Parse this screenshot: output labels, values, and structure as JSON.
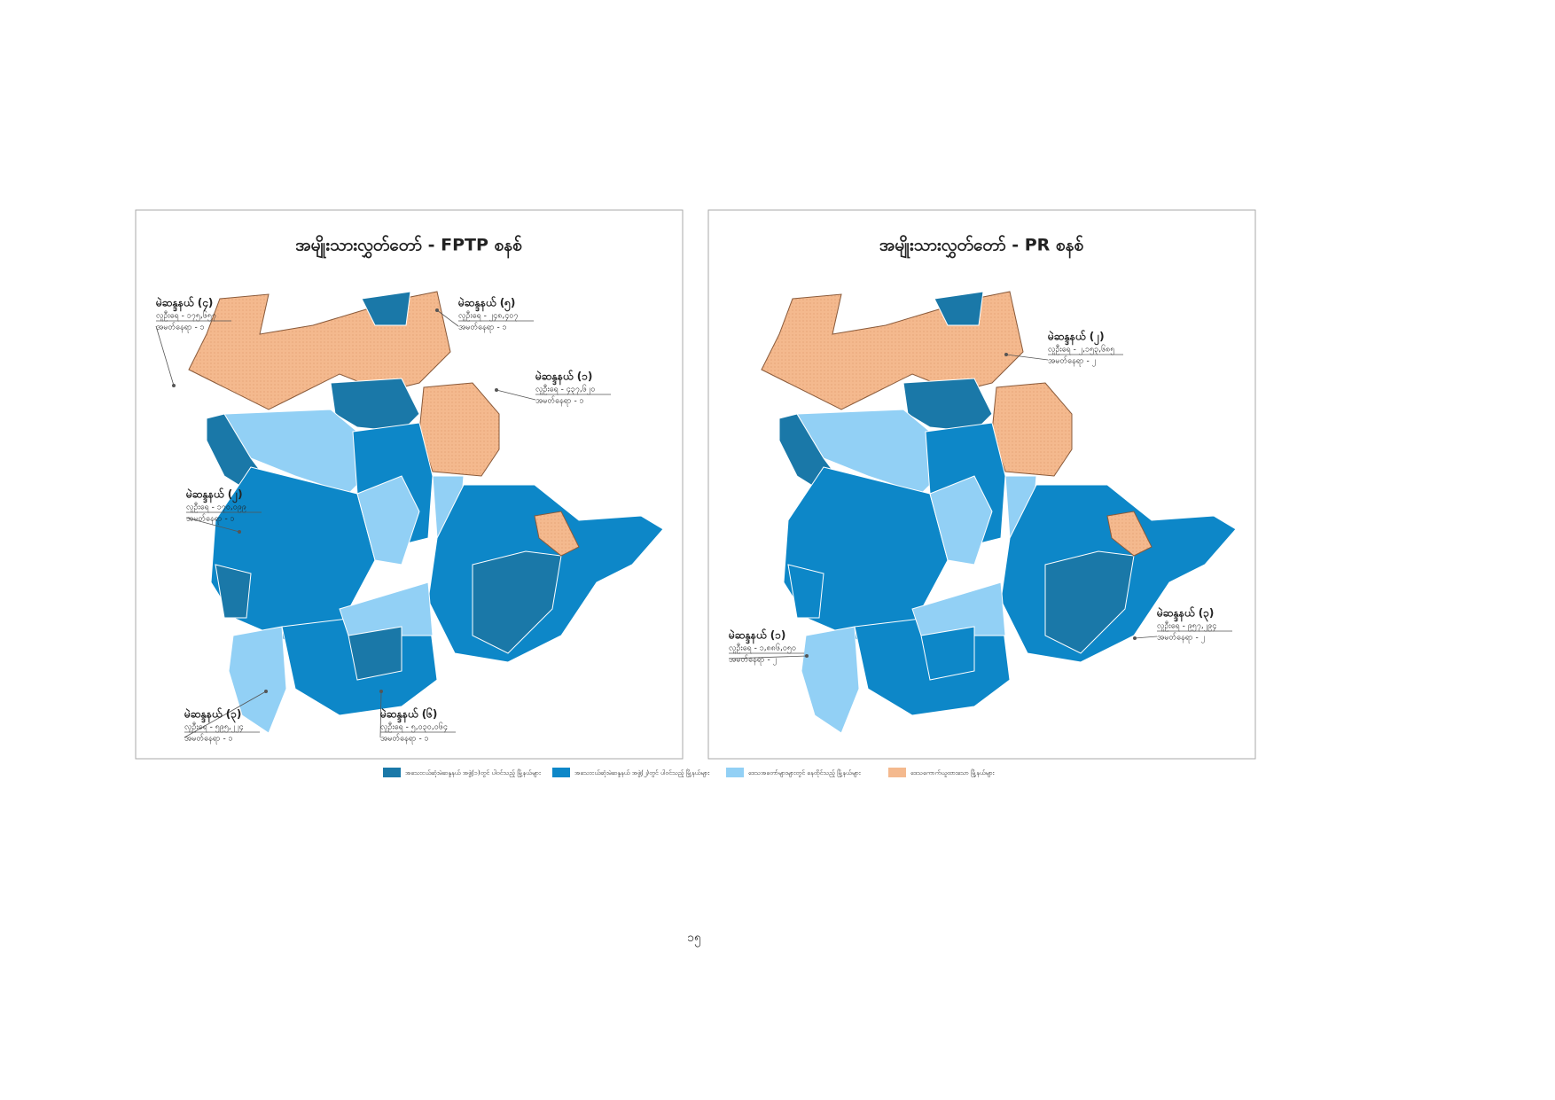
{
  "maps": [
    {
      "title": "အမျိုးသားလွှတ်တော် - FPTP စနစ်",
      "callouts": [
        {
          "constituency": "မဲဆန္ဒနယ် (၄)",
          "population": "လူဦးရေ - ၁၇၅,၆၅၇",
          "seats": "အမတ်နေရာ - ၁"
        },
        {
          "constituency": "မဲဆန္ဒနယ် (၅)",
          "population": "လူဦးရေ - ၂၄၈,၄၀၇",
          "seats": "အမတ်နေရာ - ၁"
        },
        {
          "constituency": "မဲဆန္ဒနယ် (၁)",
          "population": "လူဦးရေ - ၄၃၇,၆၂၀",
          "seats": "အမတ်နေရာ - ၁"
        },
        {
          "constituency": "မဲဆန္ဒနယ် (၂)",
          "population": "လူဦးရေ - ၁၇၀,၀၉၉",
          "seats": "အမတ်နေရာ - ၁"
        },
        {
          "constituency": "မဲဆန္ဒနယ် (၃)",
          "population": "လူဦးရေ - ၅၉၅,၂၂၄",
          "seats": "အမတ်နေရာ - ၁"
        },
        {
          "constituency": "မဲဆန္ဒနယ် (၆)",
          "population": "လူဦးရေ - ၅,၀၃၀,၀၆၄",
          "seats": "အမတ်နေရာ - ၁"
        }
      ]
    },
    {
      "title": "အမျိုးသားလွှတ်တော် - PR စနစ်",
      "callouts": [
        {
          "constituency": "မဲဆန္ဒနယ် (၂)",
          "population": "လူဦးရေ - ၂,၁၅၃,၆၈၅",
          "seats": "အမတ်နေရာ - ၂"
        },
        {
          "constituency": "မဲဆန္ဒနယ် (၁)",
          "population": "လူဦးရေ - ၁,၈၈၆,၀၅၀",
          "seats": "အမတ်နေရာ - ၂"
        },
        {
          "constituency": "မဲဆန္ဒနယ် (၃)",
          "population": "လူဦးရေ - ၉၅၇,၂၉၄",
          "seats": "အမတ်နေရာ - ၂"
        }
      ]
    }
  ],
  "legend": [
    {
      "label": "အသေးငယ်ဆုံးမဲဆန္ဒနယ် အဖွဲ့(၁)တွင် ပါဝင်သည့် မြို့နယ်များ",
      "color": "#1a78a8"
    },
    {
      "label": "အသေးငယ်ဆုံးမဲဆန္ဒနယ် အဖွဲ့(၂)တွင် ပါဝင်သည့် မြို့နယ်များ",
      "color": "#0d87c8"
    },
    {
      "label": "ဒေသအတော်များများတွင် နေထိုင်သည့် မြို့နယ်များ",
      "color": "#92d0f5"
    },
    {
      "label": "ဒေသကောက်ယူထားသော မြို့နယ်များ",
      "color": "#f4b98e"
    }
  ],
  "page_number": "၁၅"
}
